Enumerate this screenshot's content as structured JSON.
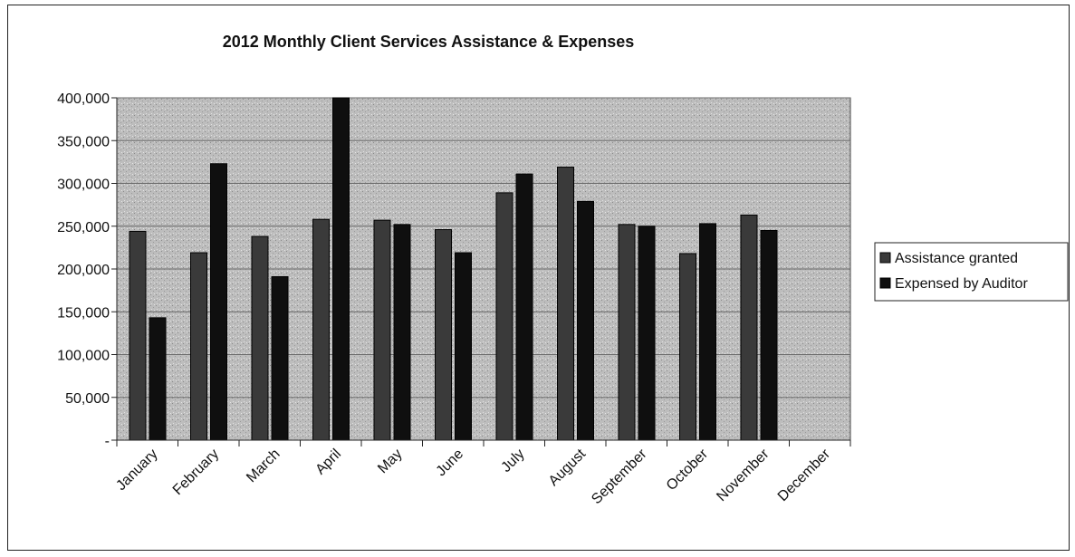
{
  "chart_data": {
    "type": "bar",
    "title": "2012 Monthly Client Services Assistance & Expenses",
    "xlabel": "",
    "ylabel": "",
    "categories": [
      "January",
      "February",
      "March",
      "April",
      "May",
      "June",
      "July",
      "August",
      "September",
      "October",
      "November",
      "December"
    ],
    "series": [
      {
        "name": "Assistance granted",
        "values": [
          244000,
          219000,
          238000,
          258000,
          257000,
          246000,
          289000,
          319000,
          252000,
          218000,
          263000,
          null
        ]
      },
      {
        "name": "Expensed by Auditor",
        "values": [
          143000,
          323000,
          191000,
          400000,
          252000,
          219000,
          311000,
          279000,
          250000,
          253000,
          245000,
          null
        ]
      }
    ],
    "ylim": [
      0,
      400000
    ],
    "yticks": [
      0,
      50000,
      100000,
      150000,
      200000,
      250000,
      300000,
      350000,
      400000
    ],
    "ytick_labels": [
      "-",
      "50,000",
      "100,000",
      "150,000",
      "200,000",
      "250,000",
      "300,000",
      "350,000",
      "400,000"
    ],
    "grid": true,
    "legend_position": "right",
    "colors": {
      "plot_background": "#b9b9b9",
      "assistance": "#3a3a3a",
      "expensed": "#0f0f0f",
      "gridline": "#6b6b6b"
    }
  }
}
